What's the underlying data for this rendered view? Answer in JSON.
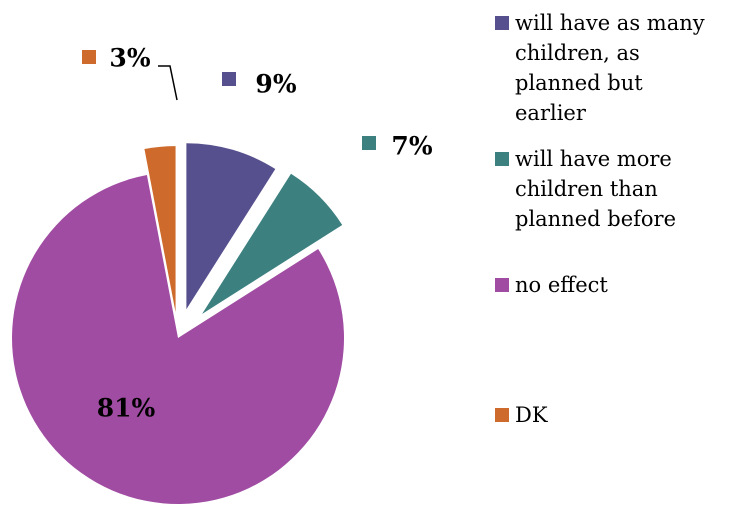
{
  "chart_data": {
    "type": "pie",
    "exploded": true,
    "categories": [
      "will have as many children, as planned but earlier",
      "will have more children than planned before",
      "no effect",
      "DK"
    ],
    "values": [
      9,
      7,
      81,
      3
    ],
    "data_labels": [
      "9%",
      "7%",
      "81%",
      "3%"
    ],
    "colors": [
      "#57508e",
      "#3d8080",
      "#a04ca2",
      "#cd6a2c"
    ],
    "legend": {
      "position": "right",
      "entries": [
        [
          "will have as many",
          "children, as",
          "planned but",
          "earlier"
        ],
        [
          "will have more",
          "children than",
          "planned before"
        ],
        [
          "no effect"
        ],
        [
          "DK"
        ]
      ]
    }
  }
}
